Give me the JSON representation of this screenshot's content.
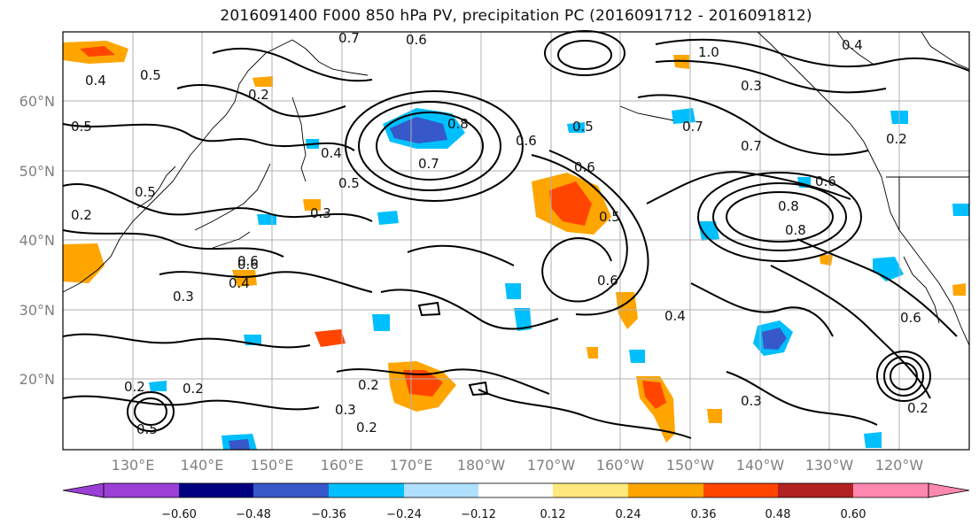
{
  "title": "2016091400 F000 850 hPa PV, precipitation PC (2016091712 - 2016091812)",
  "lon_labels": [
    "130°E",
    "140°E",
    "150°E",
    "160°E",
    "170°E",
    "180°W",
    "170°W",
    "160°W",
    "150°W",
    "140°W",
    "130°W",
    "120°W"
  ],
  "lat_labels": [
    "60°N",
    "50°N",
    "40°N",
    "30°N",
    "20°N"
  ],
  "colorbar": {
    "tick_labels": [
      "−0.60",
      "−0.48",
      "−0.36",
      "−0.24",
      "−0.12",
      "0.12",
      "0.24",
      "0.36",
      "0.48",
      "0.60"
    ],
    "colors": [
      "#9b3fd6",
      "#000080",
      "#3658c8",
      "#00bfff",
      "#b0e0ff",
      "#ffffff",
      "#ffe97f",
      "#ffa500",
      "#ff4500",
      "#b22222",
      "#ff88b0"
    ]
  },
  "contour_labels": [
    "0.4",
    "0.5",
    "0.5",
    "0.2",
    "0.6",
    "0.2",
    "0.4",
    "0.5",
    "0.3",
    "0.5",
    "0.6",
    "0.4",
    "0.3",
    "0.2",
    "0.2",
    "0.2",
    "0.3",
    "0.2",
    "0.7",
    "0.6",
    "0.8",
    "0.6",
    "0.5",
    "0.6",
    "0.5",
    "0.6",
    "1.0",
    "0.4",
    "0.3",
    "0.7",
    "0.7",
    "0.8",
    "0.6",
    "0.7",
    "0.8",
    "0.4",
    "0.6",
    "0.2",
    "0.3",
    "0.2",
    "0.5"
  ]
}
